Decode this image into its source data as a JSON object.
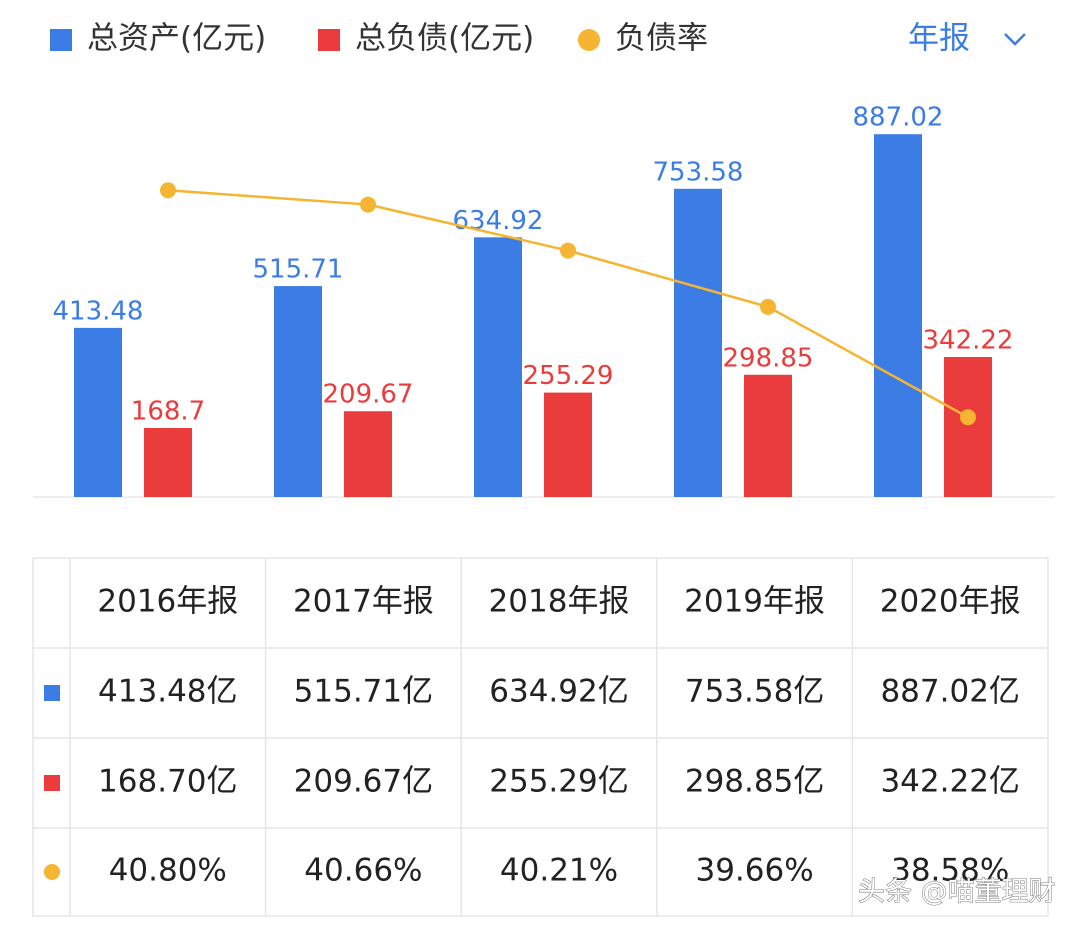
{
  "chart_data": {
    "type": "bar-line",
    "categories": [
      "2016年报",
      "2017年报",
      "2018年报",
      "2019年报",
      "2020年报"
    ],
    "series": [
      {
        "name": "总资产(亿元)",
        "type": "bar",
        "color": "#3b7de4",
        "values": [
          413.48,
          515.71,
          634.92,
          753.58,
          887.02
        ]
      },
      {
        "name": "总负债(亿元)",
        "type": "bar",
        "color": "#ea3b3d",
        "values": [
          168.7,
          209.67,
          255.29,
          298.85,
          342.22
        ]
      },
      {
        "name": "负债率",
        "type": "line",
        "axis": "y2",
        "color": "#f5b431",
        "values": [
          40.8,
          40.66,
          40.21,
          39.66,
          38.58
        ]
      }
    ],
    "ylim": [
      0,
      1000
    ],
    "y2lim": [
      37.8,
      41.8
    ],
    "period_selector": "年报"
  },
  "table": {
    "rows": [
      [
        "413.48亿",
        "515.71亿",
        "634.92亿",
        "753.58亿",
        "887.02亿"
      ],
      [
        "168.70亿",
        "209.67亿",
        "255.29亿",
        "298.85亿",
        "342.22亿"
      ],
      [
        "40.80%",
        "40.66%",
        "40.21%",
        "39.66%",
        "38.58%"
      ]
    ]
  },
  "watermark": "头条 @喵董理财"
}
